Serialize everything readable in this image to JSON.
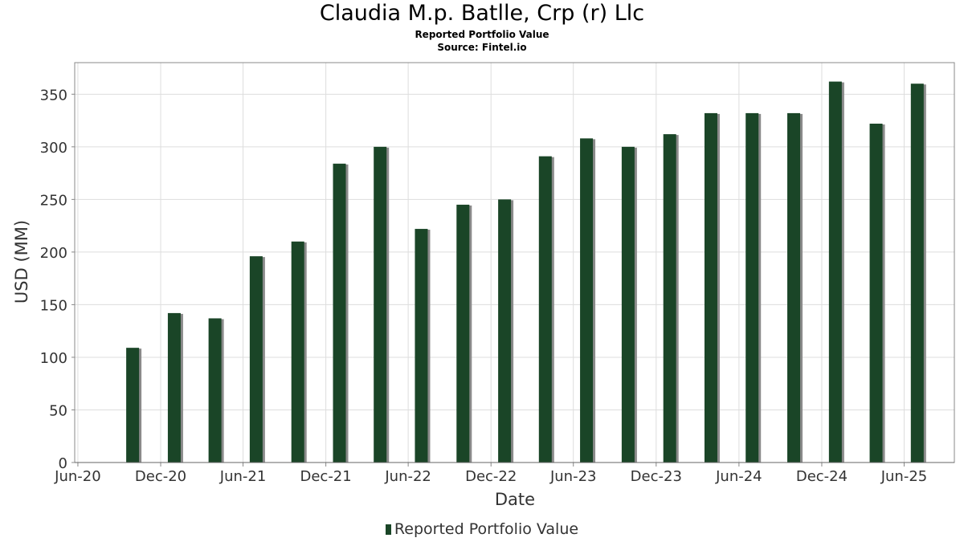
{
  "title": "Claudia M.p. Batlle, Crp (r) Llc",
  "subtitle": "Reported Portfolio Value",
  "source": "Source: Fintel.io",
  "colors": {
    "bar": "#1a4527",
    "shadow": "#8a8a8a",
    "grid": "#dddddd",
    "frame": "#888888"
  },
  "chart_data": {
    "type": "bar",
    "title": "Claudia M.p. Batlle, Crp (r) Llc",
    "subtitle": "Reported Portfolio Value",
    "xlabel": "Date",
    "ylabel": "USD (MM)",
    "xlim": [
      "2020-05-25",
      "2025-09-20"
    ],
    "ylim": [
      0,
      380
    ],
    "yticks": [
      0,
      50,
      100,
      150,
      200,
      250,
      300,
      350
    ],
    "xticks": [
      {
        "date": "2020-06-01",
        "label": "Jun-20"
      },
      {
        "date": "2020-12-01",
        "label": "Dec-20"
      },
      {
        "date": "2021-06-01",
        "label": "Jun-21"
      },
      {
        "date": "2021-12-01",
        "label": "Dec-21"
      },
      {
        "date": "2022-06-01",
        "label": "Jun-22"
      },
      {
        "date": "2022-12-01",
        "label": "Dec-22"
      },
      {
        "date": "2023-06-01",
        "label": "Jun-23"
      },
      {
        "date": "2023-12-01",
        "label": "Dec-23"
      },
      {
        "date": "2024-06-01",
        "label": "Jun-24"
      },
      {
        "date": "2024-12-01",
        "label": "Dec-24"
      },
      {
        "date": "2025-06-01",
        "label": "Jun-25"
      }
    ],
    "grid": true,
    "legend_position": "bottom-center",
    "series": [
      {
        "name": "Reported Portfolio Value",
        "points": [
          {
            "x": "2020-09-30",
            "y": 109
          },
          {
            "x": "2020-12-31",
            "y": 142
          },
          {
            "x": "2021-03-31",
            "y": 137
          },
          {
            "x": "2021-06-30",
            "y": 196
          },
          {
            "x": "2021-09-30",
            "y": 210
          },
          {
            "x": "2021-12-31",
            "y": 284
          },
          {
            "x": "2022-03-31",
            "y": 300
          },
          {
            "x": "2022-06-30",
            "y": 222
          },
          {
            "x": "2022-09-30",
            "y": 245
          },
          {
            "x": "2022-12-31",
            "y": 250
          },
          {
            "x": "2023-03-31",
            "y": 291
          },
          {
            "x": "2023-06-30",
            "y": 308
          },
          {
            "x": "2023-09-30",
            "y": 300
          },
          {
            "x": "2023-12-31",
            "y": 312
          },
          {
            "x": "2024-03-31",
            "y": 332
          },
          {
            "x": "2024-06-30",
            "y": 332
          },
          {
            "x": "2024-09-30",
            "y": 332
          },
          {
            "x": "2024-12-31",
            "y": 362
          },
          {
            "x": "2025-03-31",
            "y": 322
          },
          {
            "x": "2025-06-30",
            "y": 360
          }
        ]
      }
    ]
  }
}
